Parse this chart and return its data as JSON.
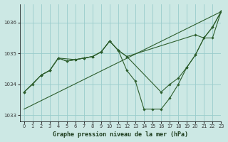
{
  "xlabel": "Graphe pression niveau de la mer (hPa)",
  "ylim": [
    1032.8,
    1036.6
  ],
  "xlim": [
    -0.5,
    23
  ],
  "yticks": [
    1033,
    1034,
    1035,
    1036
  ],
  "xticks": [
    0,
    1,
    2,
    3,
    4,
    5,
    6,
    7,
    8,
    9,
    10,
    11,
    12,
    13,
    14,
    15,
    16,
    17,
    18,
    19,
    20,
    21,
    22,
    23
  ],
  "bg_color": "#cce8e4",
  "grid_color": "#99cccc",
  "line_color": "#2d5e2d",
  "line_straight": {
    "x": [
      0,
      23
    ],
    "y": [
      1033.2,
      1036.35
    ]
  },
  "line_upper": {
    "x": [
      0,
      2,
      3,
      4,
      6,
      7,
      8,
      9,
      10,
      11,
      12,
      20,
      21,
      22,
      23
    ],
    "y": [
      1033.75,
      1034.3,
      1034.45,
      1034.85,
      1034.8,
      1034.85,
      1034.9,
      1035.05,
      1035.4,
      1035.1,
      1034.9,
      1035.6,
      1035.5,
      1035.85,
      1036.35
    ]
  },
  "line_curved": {
    "x": [
      0,
      1,
      2,
      3,
      4,
      5,
      6,
      7,
      8,
      9,
      10,
      11,
      12,
      13,
      14,
      15,
      16,
      17,
      18,
      19,
      20,
      21,
      22,
      23
    ],
    "y": [
      1033.75,
      1034.0,
      1034.3,
      1034.45,
      1034.85,
      1034.75,
      1034.8,
      1034.85,
      1034.9,
      1035.05,
      1035.4,
      1035.1,
      1034.45,
      1034.1,
      1033.2,
      1033.2,
      1033.2,
      1033.55,
      1034.0,
      1034.55,
      1034.95,
      1035.5,
      1035.5,
      1036.35
    ]
  },
  "line_mid": {
    "x": [
      2,
      3,
      4,
      5,
      6,
      7,
      8,
      9,
      10,
      11,
      12,
      16,
      17,
      18,
      19,
      20,
      21,
      22,
      23
    ],
    "y": [
      1034.3,
      1034.45,
      1034.85,
      1034.75,
      1034.8,
      1034.85,
      1034.9,
      1035.05,
      1035.4,
      1035.1,
      1034.9,
      1033.75,
      1034.0,
      1034.2,
      1034.55,
      1034.95,
      1035.5,
      1035.85,
      1036.35
    ]
  }
}
